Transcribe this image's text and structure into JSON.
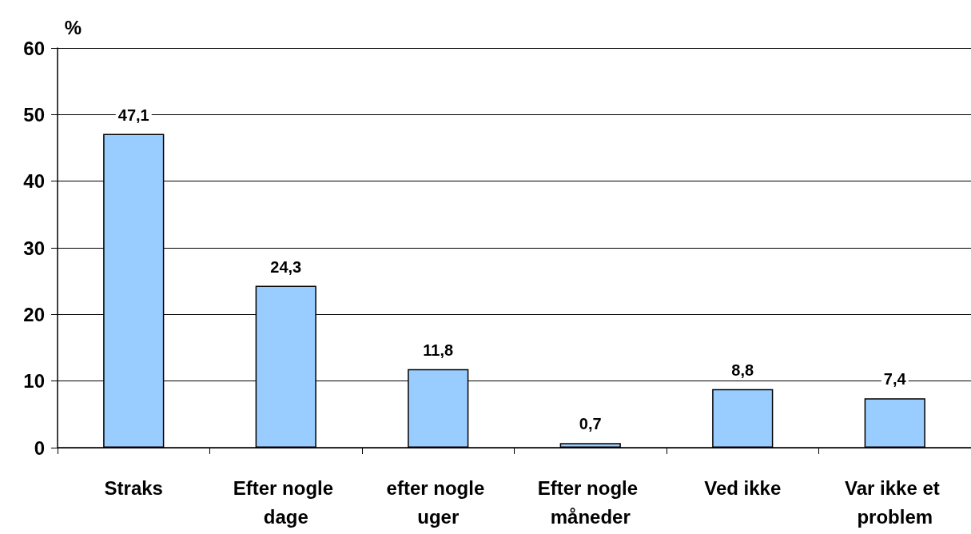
{
  "chart_data": {
    "type": "bar",
    "ylabel": "%",
    "categories": [
      "Straks",
      "Efter nogle dage",
      "efter nogle uger",
      "Efter nogle måneder",
      "Ved ikke",
      "Var ikke et problem"
    ],
    "values": [
      47.1,
      24.3,
      11.8,
      0.7,
      8.8,
      7.4
    ],
    "value_labels": [
      "47,1",
      "24,3",
      "11,8",
      "0,7",
      "8,8",
      "7,4"
    ],
    "color": "#99ccff",
    "ylim": [
      0,
      60
    ],
    "yticks": [
      0,
      10,
      20,
      30,
      40,
      50,
      60
    ],
    "grid": "y"
  }
}
